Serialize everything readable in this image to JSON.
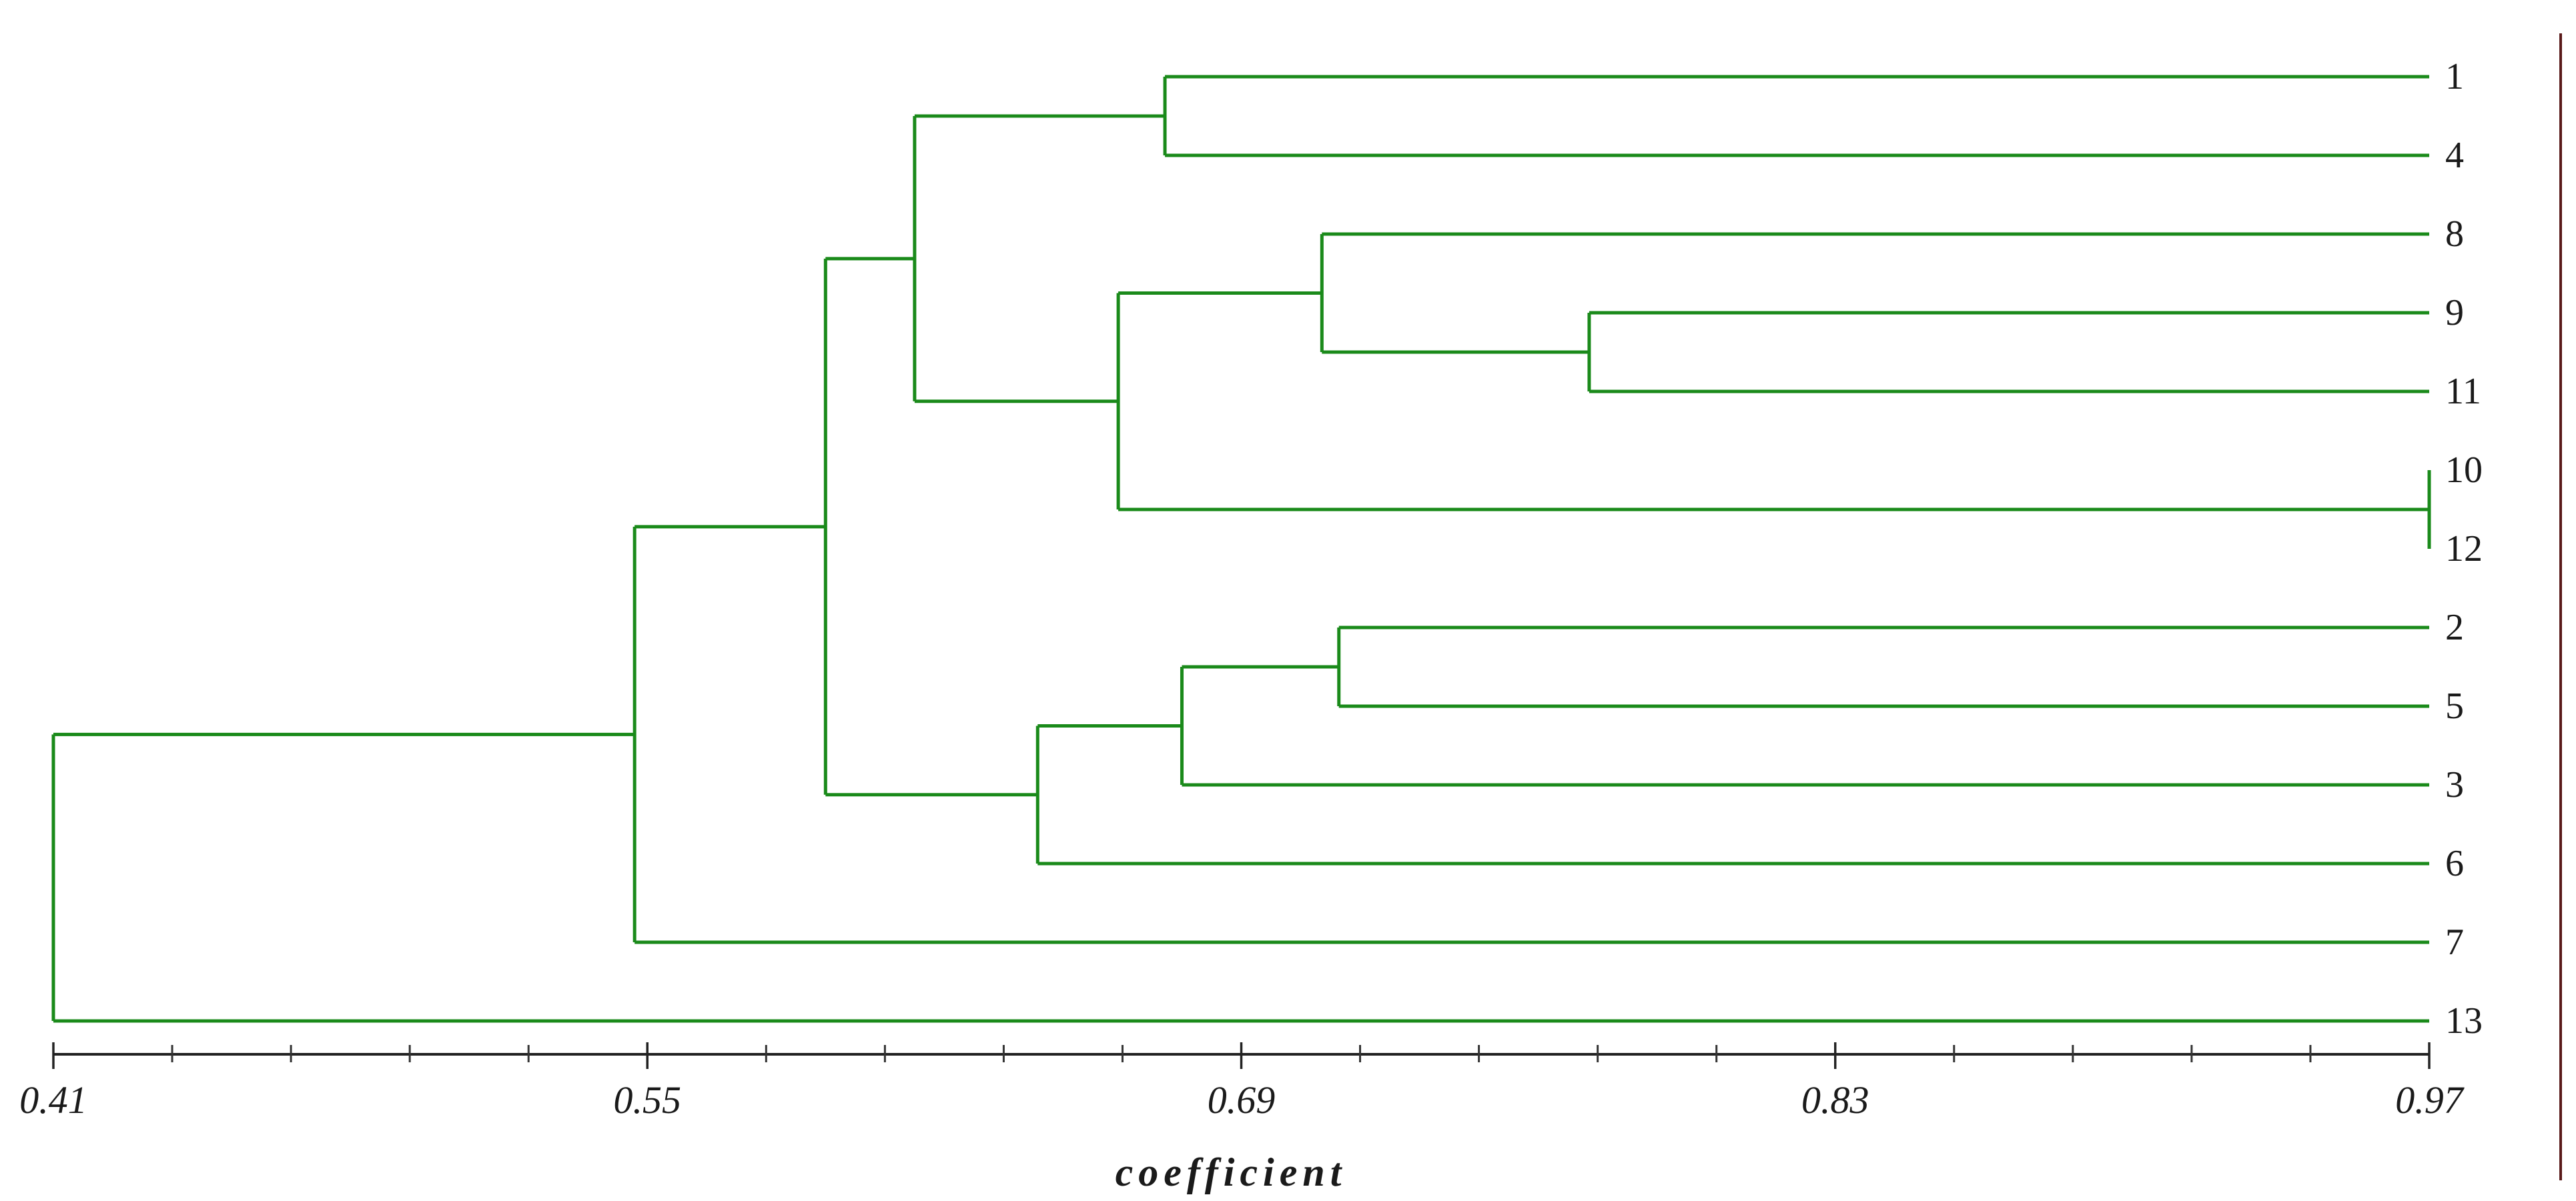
{
  "dendrogram": {
    "colors": {
      "branch": "#1a8a1a",
      "axis": "#222222",
      "frame": "#5a1a1a"
    },
    "x_axis": {
      "title": "coefficient",
      "min": 0.41,
      "max": 0.97,
      "major_ticks": [
        0.41,
        0.55,
        0.69,
        0.83,
        0.97
      ],
      "tick_labels": [
        "0.41",
        "0.55",
        "0.69",
        "0.83",
        "0.97"
      ],
      "minor_step": 0.028
    },
    "leaves": [
      "1",
      "4",
      "8",
      "9",
      "11",
      "10",
      "12",
      "2",
      "5",
      "3",
      "6",
      "7",
      "13"
    ],
    "merges": [
      {
        "id": "A",
        "children": [
          "leaf:1",
          "leaf:4"
        ],
        "height": 0.672
      },
      {
        "id": "B",
        "children": [
          "leaf:9",
          "leaf:11"
        ],
        "height": 0.772
      },
      {
        "id": "C",
        "children": [
          "leaf:8",
          "node:B"
        ],
        "height": 0.709
      },
      {
        "id": "D",
        "children": [
          "leaf:10",
          "leaf:12"
        ],
        "height": 0.97
      },
      {
        "id": "E",
        "children": [
          "node:C",
          "node:D"
        ],
        "height": 0.661
      },
      {
        "id": "F",
        "children": [
          "node:A",
          "node:E"
        ],
        "height": 0.613
      },
      {
        "id": "G",
        "children": [
          "leaf:2",
          "leaf:5"
        ],
        "height": 0.713
      },
      {
        "id": "H",
        "children": [
          "node:G",
          "leaf:3"
        ],
        "height": 0.676
      },
      {
        "id": "I",
        "children": [
          "node:H",
          "leaf:6"
        ],
        "height": 0.642
      },
      {
        "id": "J",
        "children": [
          "node:F",
          "node:I"
        ],
        "height": 0.592
      },
      {
        "id": "K",
        "children": [
          "node:J",
          "leaf:7"
        ],
        "height": 0.547
      },
      {
        "id": "L",
        "children": [
          "node:K",
          "leaf:13"
        ],
        "height": 0.41
      }
    ]
  }
}
